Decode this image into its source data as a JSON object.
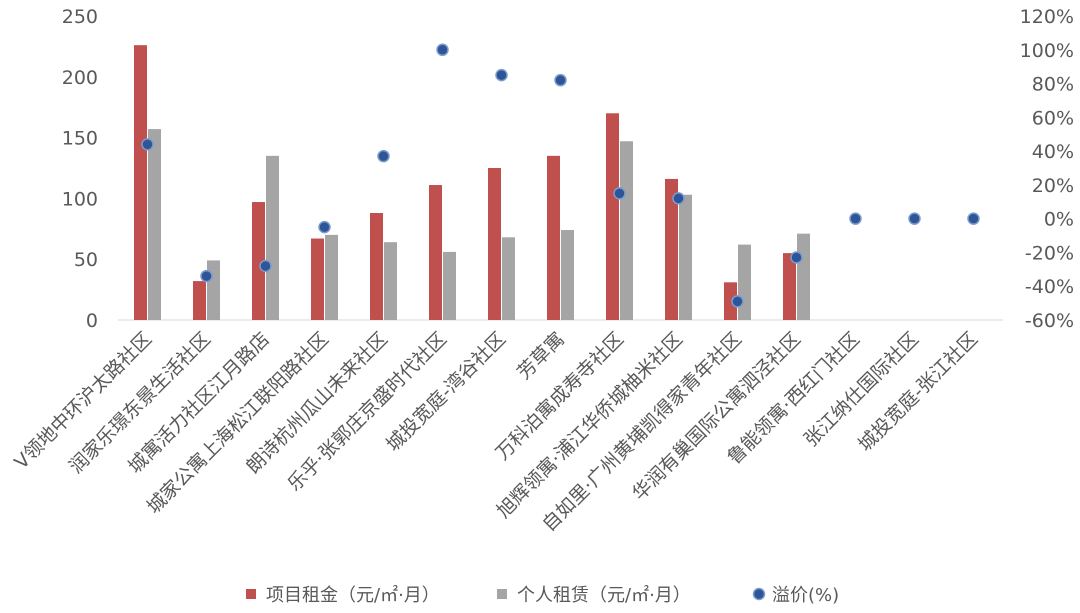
{
  "chart_data": {
    "type": "bar",
    "categories": [
      "V领地中环沪太路社区",
      "润家乐璟东景生活社区",
      "城寓活力社区江月路店",
      "城家公寓上海松江联阳路社区",
      "朗诗杭州瓜山未来社区",
      "乐乎·张郭庄京盛时代社区",
      "城投宽庭-湾谷社区",
      "芳草寓",
      "万科泊寓成寿寺社区",
      "旭辉领寓·浦江华侨城柚米社区",
      "自如里·广州黄埔凯得家青年社区",
      "华润有巢国际公寓泗泾社区",
      "鲁能领寓·西红门社区",
      "张江纳仕国际社区",
      "城投宽庭-张江社区"
    ],
    "series": [
      {
        "name": "项目租金（元/㎡·月）",
        "type": "bar",
        "axis": "left",
        "color": "#C0504D",
        "values": [
          226,
          32,
          97,
          67,
          88,
          111,
          125,
          135,
          170,
          116,
          31,
          55,
          null,
          null,
          null
        ]
      },
      {
        "name": "个人租赁（元/㎡·月）",
        "type": "bar",
        "axis": "left",
        "color": "#A5A5A5",
        "values": [
          157,
          49,
          135,
          70,
          64,
          56,
          68,
          74,
          147,
          103,
          62,
          71,
          null,
          null,
          null
        ]
      },
      {
        "name": "溢价(%)",
        "type": "scatter",
        "axis": "right",
        "color": "#2E5597",
        "values": [
          44,
          -34,
          -28,
          -5,
          37,
          100,
          85,
          82,
          15,
          12,
          -49,
          -23,
          0,
          0,
          0
        ]
      }
    ],
    "left_axis": {
      "ylim": [
        0,
        250
      ],
      "ticks": [
        "0",
        "50",
        "100",
        "150",
        "200",
        "250"
      ]
    },
    "right_axis": {
      "ylim": [
        -60,
        120
      ],
      "ticks": [
        "-60%",
        "-40%",
        "-20%",
        "0%",
        "20%",
        "40%",
        "60%",
        "80%",
        "100%",
        "120%"
      ]
    },
    "grid": false,
    "legend_position": "bottom"
  }
}
